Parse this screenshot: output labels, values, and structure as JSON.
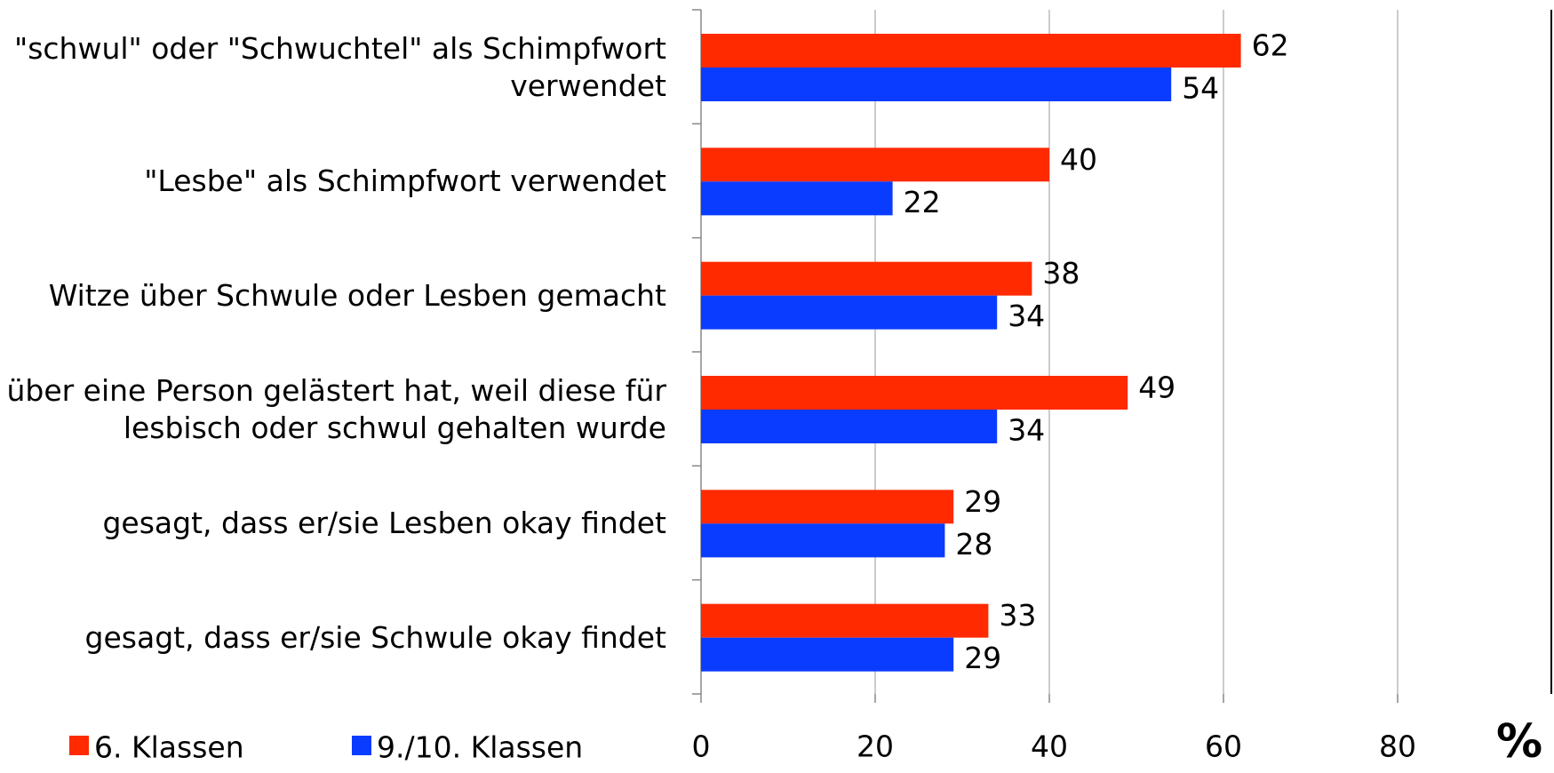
{
  "chart_data": {
    "type": "barh",
    "x_label": "%",
    "categories": [
      "\"schwul\" oder \"Schwuchtel\" als Schimpfwort\nverwendet",
      "\"Lesbe\" als Schimpfwort verwendet",
      "Witze über Schwule oder Lesben gemacht",
      "über eine Person gelästert hat, weil diese für\nlesbisch oder schwul gehalten wurde",
      "gesagt, dass er/sie Lesben okay findet",
      "gesagt, dass er/sie Schwule okay findet"
    ],
    "series": [
      {
        "name": "6. Klassen",
        "color": "#ff2a00",
        "values": [
          62,
          40,
          38,
          49,
          29,
          33
        ]
      },
      {
        "name": "9./10. Klassen",
        "color": "#0a3cff",
        "values": [
          54,
          22,
          34,
          34,
          28,
          29
        ]
      }
    ],
    "xlim": [
      0,
      100
    ],
    "xticks": [
      0,
      20,
      40,
      60,
      80
    ],
    "grid": true,
    "legend": "bottom-left"
  }
}
